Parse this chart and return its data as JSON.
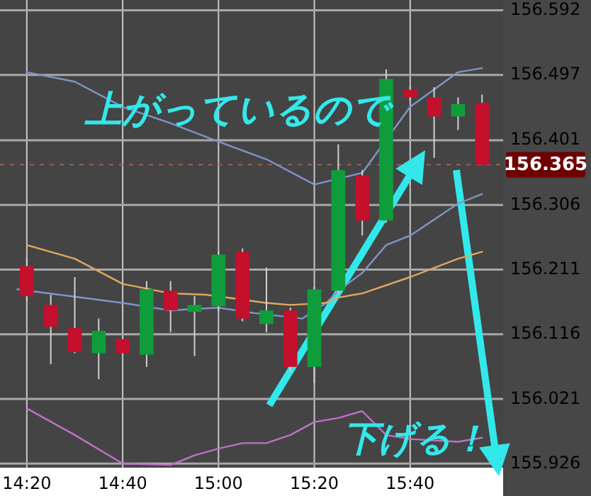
{
  "chart_data": {
    "type": "candlestick",
    "x": [
      14.3333,
      14.4167,
      14.5,
      14.5833,
      14.6667,
      14.75,
      14.8333,
      14.9167,
      15.0,
      15.0833,
      15.1667,
      15.25,
      15.3333,
      15.4167,
      15.5,
      15.5833,
      15.6667,
      15.75,
      15.8333,
      15.9167
    ],
    "ohlc": [
      [
        156.216,
        156.228,
        156.165,
        156.172
      ],
      [
        156.159,
        156.174,
        156.072,
        156.127
      ],
      [
        156.125,
        156.2,
        156.088,
        156.09
      ],
      [
        156.088,
        156.139,
        156.05,
        156.121
      ],
      [
        156.109,
        156.113,
        156.088,
        156.088
      ],
      [
        156.086,
        156.194,
        156.068,
        156.182
      ],
      [
        156.18,
        156.194,
        156.119,
        156.151
      ],
      [
        156.149,
        156.172,
        156.084,
        156.159
      ],
      [
        156.157,
        156.237,
        156.15,
        156.233
      ],
      [
        156.237,
        156.242,
        156.135,
        156.139
      ],
      [
        156.131,
        156.214,
        156.119,
        156.151
      ],
      [
        156.151,
        156.155,
        156.06,
        156.068
      ],
      [
        156.068,
        156.186,
        156.044,
        156.182
      ],
      [
        156.18,
        156.395,
        156.176,
        156.357
      ],
      [
        156.349,
        156.357,
        156.261,
        156.283
      ],
      [
        156.283,
        156.505,
        156.28,
        156.491
      ],
      [
        156.475,
        156.48,
        156.46,
        156.464
      ],
      [
        156.464,
        156.479,
        156.375,
        156.436
      ],
      [
        156.436,
        156.464,
        156.416,
        156.454
      ],
      [
        156.456,
        156.468,
        156.365,
        156.365
      ]
    ],
    "colors": [
      "#c4102c",
      "#c4102c",
      "#c4102c",
      "#0f9d3c",
      "#c4102c",
      "#0f9d3c",
      "#c4102c",
      "#0f9d3c",
      "#0f9d3c",
      "#c4102c",
      "#0f9d3c",
      "#c4102c",
      "#0f9d3c",
      "#0f9d3c",
      "#c4102c",
      "#0f9d3c",
      "#c4102c",
      "#c4102c",
      "#0f9d3c",
      "#c4102c"
    ],
    "series": [
      {
        "type": "line",
        "color": "#7f95c8",
        "x": [
          14.3333,
          14.5,
          14.6667,
          14.8333,
          15.0,
          15.1667,
          15.3333,
          15.5,
          15.6667,
          15.8333,
          15.9167
        ],
        "values": [
          156.501,
          156.487,
          156.45,
          156.426,
          156.399,
          156.373,
          156.336,
          156.353,
          156.45,
          156.501,
          156.507
        ]
      },
      {
        "type": "line",
        "color": "#7f95c8",
        "x": [
          14.3,
          14.6667,
          14.8333,
          15.0,
          15.125,
          15.2917,
          15.375,
          15.4167,
          15.5,
          15.5833,
          15.6667,
          15.8333,
          15.9167
        ],
        "values": [
          156.182,
          156.162,
          156.151,
          156.155,
          156.147,
          156.139,
          156.162,
          156.18,
          156.206,
          156.247,
          156.261,
          156.308,
          156.322
        ]
      },
      {
        "type": "line",
        "color": "#e0a860",
        "x": [
          14.3333,
          14.5,
          14.6667,
          14.8333,
          14.9583,
          15.1667,
          15.25,
          15.375,
          15.4167,
          15.5,
          15.6667,
          15.8333,
          15.9167
        ],
        "values": [
          156.247,
          156.227,
          156.19,
          156.176,
          156.174,
          156.162,
          156.159,
          156.162,
          156.17,
          156.176,
          156.2,
          156.227,
          156.237
        ]
      },
      {
        "type": "line",
        "color": "#c070c8",
        "x": [
          14.3333,
          14.5,
          14.6667,
          14.8333,
          14.9167,
          15.0,
          15.0833,
          15.1667,
          15.25,
          15.3333,
          15.4167,
          15.5,
          15.5833,
          15.6667,
          15.8333,
          15.9167
        ],
        "values": [
          156.007,
          155.968,
          155.926,
          155.924,
          155.938,
          155.948,
          155.956,
          155.956,
          155.968,
          155.987,
          155.993,
          156.003,
          155.968,
          155.962,
          155.958,
          155.964
        ]
      }
    ],
    "xlim": [
      14.24,
      15.99
    ],
    "ylim": [
      155.92,
      156.607
    ],
    "xticks": [
      {
        "value": 14.3333,
        "label": "14:20"
      },
      {
        "value": 14.6667,
        "label": "14:40"
      },
      {
        "value": 15.0,
        "label": "15:00"
      },
      {
        "value": 15.3333,
        "label": "15:20"
      },
      {
        "value": 15.6667,
        "label": "15:40"
      }
    ],
    "yticks": [
      156.592,
      156.497,
      156.401,
      156.306,
      156.211,
      156.116,
      156.021,
      155.926
    ],
    "grid": true,
    "ref_lines": [
      {
        "axis": "y",
        "value": 156.365,
        "label": "156.365",
        "color": "#a0604c",
        "line_style": "dashed"
      }
    ],
    "annotations": [
      "上がっているので",
      "下げる！"
    ]
  }
}
